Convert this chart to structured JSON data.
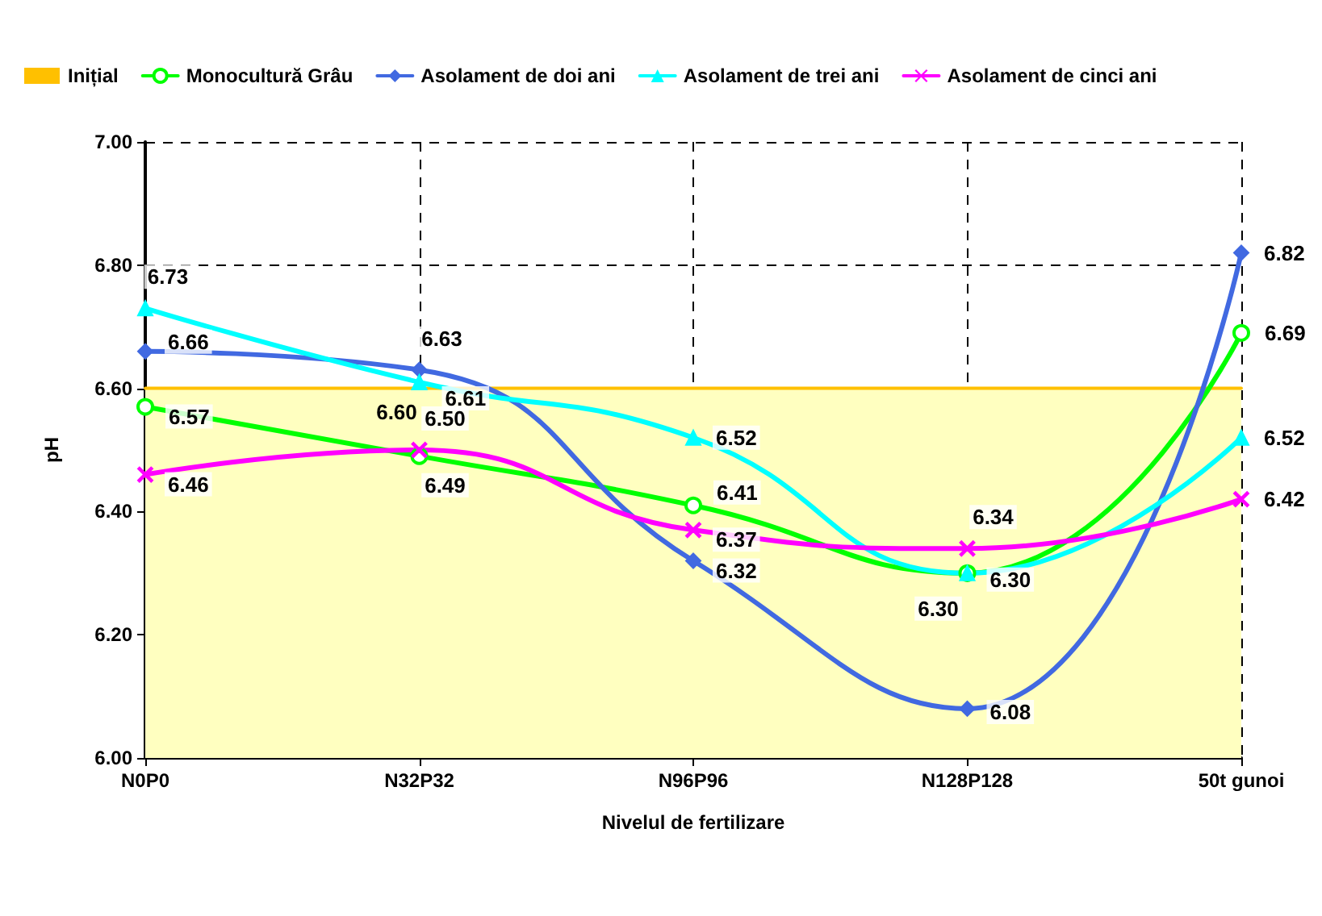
{
  "chart_data": {
    "type": "line",
    "xlabel": "Nivelul de fertilizare",
    "ylabel": "pH",
    "categories": [
      "N0P0",
      "N32P32",
      "N96P96",
      "N128P128",
      "50t gunoi"
    ],
    "ylim": [
      6.0,
      7.0
    ],
    "yticks": [
      {
        "value": 6.0,
        "label": "6.00"
      },
      {
        "value": 6.2,
        "label": "6.20"
      },
      {
        "value": 6.4,
        "label": "6.40"
      },
      {
        "value": 6.6,
        "label": "6.60"
      },
      {
        "value": 6.8,
        "label": "6.80"
      },
      {
        "value": 7.0,
        "label": "7.00"
      }
    ],
    "grid": true,
    "legend": "top",
    "line_style": "solid",
    "series": [
      {
        "name": "Inițial",
        "type": "area",
        "color": "#ffc000",
        "values": [
          6.6,
          6.6,
          6.6,
          6.6,
          6.6
        ],
        "marker": "none",
        "value_labels": [
          null,
          "6.60",
          null,
          null,
          null
        ]
      },
      {
        "name": "Monocultură Grâu",
        "color": "#00ff00",
        "marker": "circle",
        "values": [
          6.57,
          6.49,
          6.41,
          6.3,
          6.69
        ],
        "value_labels": [
          "6.57",
          "6.49",
          "6.41",
          "6.30",
          "6.69"
        ]
      },
      {
        "name": "Asolament de doi ani",
        "color": "#4169e1",
        "marker": "diamond",
        "values": [
          6.66,
          6.63,
          6.32,
          6.08,
          6.82
        ],
        "value_labels": [
          "6.66",
          "6.63",
          "6.32",
          "6.08",
          "6.82"
        ]
      },
      {
        "name": "Asolament de trei ani",
        "color": "#00ffff",
        "marker": "triangle",
        "values": [
          6.73,
          6.61,
          6.52,
          6.3,
          6.52
        ],
        "value_labels": [
          "6.73",
          "6.61",
          "6.52",
          "6.30",
          "6.52"
        ]
      },
      {
        "name": "Asolament de cinci ani",
        "color": "#ff00ff",
        "marker": "cross",
        "values": [
          6.46,
          6.5,
          6.37,
          6.34,
          6.42
        ],
        "value_labels": [
          "6.46",
          "6.50",
          "6.37",
          "6.34",
          "6.42"
        ]
      }
    ]
  }
}
